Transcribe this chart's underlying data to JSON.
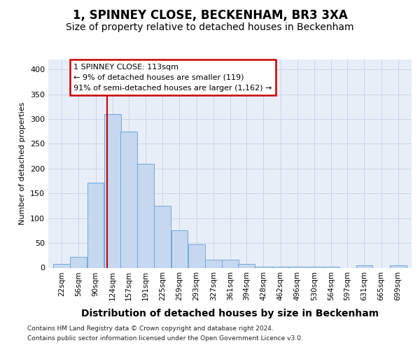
{
  "title1": "1, SPINNEY CLOSE, BECKENHAM, BR3 3XA",
  "title2": "Size of property relative to detached houses in Beckenham",
  "xlabel": "Distribution of detached houses by size in Beckenham",
  "ylabel": "Number of detached properties",
  "bar_labels": [
    "22sqm",
    "56sqm",
    "90sqm",
    "124sqm",
    "157sqm",
    "191sqm",
    "225sqm",
    "259sqm",
    "293sqm",
    "327sqm",
    "361sqm",
    "394sqm",
    "428sqm",
    "462sqm",
    "496sqm",
    "530sqm",
    "564sqm",
    "597sqm",
    "631sqm",
    "665sqm",
    "699sqm"
  ],
  "bar_heights": [
    8,
    22,
    172,
    310,
    275,
    210,
    125,
    75,
    48,
    16,
    16,
    8,
    2,
    2,
    2,
    2,
    2,
    0,
    5,
    0,
    5
  ],
  "bar_color": "#c5d8f0",
  "bar_edge_color": "#6fa8d8",
  "vline_color": "#cc0000",
  "annotation_line1": "1 SPINNEY CLOSE: 113sqm",
  "annotation_line2": "← 9% of detached houses are smaller (119)",
  "annotation_line3": "91% of semi-detached houses are larger (1,162) →",
  "annotation_box_edge": "#cc0000",
  "grid_color": "#c8d4e8",
  "plot_bg_color": "#e8eef8",
  "ylim": [
    0,
    420
  ],
  "yticks": [
    0,
    50,
    100,
    150,
    200,
    250,
    300,
    350,
    400
  ],
  "footer1": "Contains HM Land Registry data © Crown copyright and database right 2024.",
  "footer2": "Contains public sector information licensed under the Open Government Licence v3.0.",
  "title1_fontsize": 12,
  "title2_fontsize": 10,
  "xlabel_fontsize": 10,
  "ylabel_fontsize": 8
}
